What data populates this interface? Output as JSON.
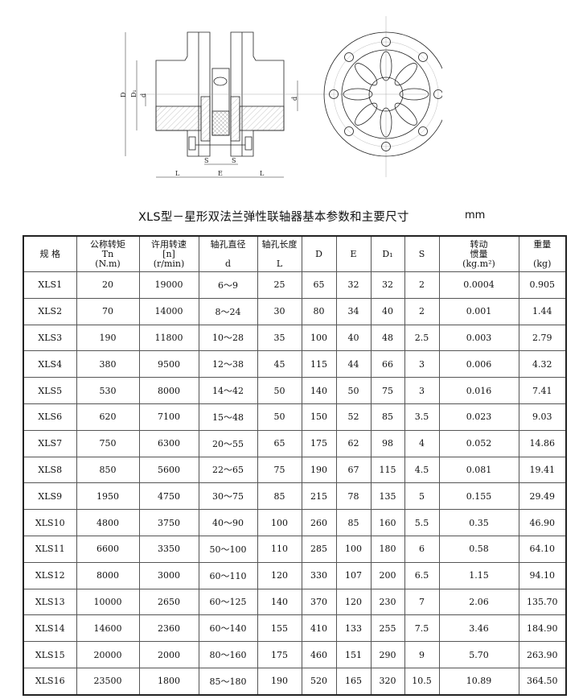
{
  "drawing": {
    "labels": {
      "D": "D",
      "D1": "D₁",
      "d": "d",
      "L": "L",
      "E": "E",
      "S": "S"
    }
  },
  "title": {
    "text": "XLS型－星形双法兰弹性联轴器基本参数和主要尺寸",
    "unit": "mm"
  },
  "table": {
    "headers": [
      {
        "lines": [
          "规 格"
        ]
      },
      {
        "lines": [
          "公称转矩",
          "Tn",
          "(N.m)"
        ]
      },
      {
        "lines": [
          "许用转速",
          "[n]",
          "(r/min)"
        ]
      },
      {
        "lines": [
          "轴孔直径",
          "",
          "d"
        ]
      },
      {
        "lines": [
          "轴孔长度",
          "",
          "L"
        ]
      },
      {
        "lines": [
          "D"
        ]
      },
      {
        "lines": [
          "E"
        ]
      },
      {
        "lines": [
          "D₁"
        ]
      },
      {
        "lines": [
          "S"
        ]
      },
      {
        "lines": [
          "转动",
          "惯量",
          "(kg.m²)"
        ]
      },
      {
        "lines": [
          "重量",
          "",
          "(kg)"
        ]
      }
    ],
    "rows": [
      [
        "XLS1",
        "20",
        "19000",
        "6～9",
        "25",
        "65",
        "32",
        "32",
        "2",
        "0.0004",
        "0.905"
      ],
      [
        "XLS2",
        "70",
        "14000",
        "8～24",
        "30",
        "80",
        "34",
        "40",
        "2",
        "0.001",
        "1.44"
      ],
      [
        "XLS3",
        "190",
        "11800",
        "10～28",
        "35",
        "100",
        "40",
        "48",
        "2.5",
        "0.003",
        "2.79"
      ],
      [
        "XLS4",
        "380",
        "9500",
        "12～38",
        "45",
        "115",
        "44",
        "66",
        "3",
        "0.006",
        "4.32"
      ],
      [
        "XLS5",
        "530",
        "8000",
        "14～42",
        "50",
        "140",
        "50",
        "75",
        "3",
        "0.016",
        "7.41"
      ],
      [
        "XLS6",
        "620",
        "7100",
        "15～48",
        "50",
        "150",
        "52",
        "85",
        "3.5",
        "0.023",
        "9.03"
      ],
      [
        "XLS7",
        "750",
        "6300",
        "20～55",
        "65",
        "175",
        "62",
        "98",
        "4",
        "0.052",
        "14.86"
      ],
      [
        "XLS8",
        "850",
        "5600",
        "22～65",
        "75",
        "190",
        "67",
        "115",
        "4.5",
        "0.081",
        "19.41"
      ],
      [
        "XLS9",
        "1950",
        "4750",
        "30～75",
        "85",
        "215",
        "78",
        "135",
        "5",
        "0.155",
        "29.49"
      ],
      [
        "XLS10",
        "4800",
        "3750",
        "40～90",
        "100",
        "260",
        "85",
        "160",
        "5.5",
        "0.35",
        "46.90"
      ],
      [
        "XLS11",
        "6600",
        "3350",
        "50～100",
        "110",
        "285",
        "100",
        "180",
        "6",
        "0.58",
        "64.10"
      ],
      [
        "XLS12",
        "8000",
        "3000",
        "60～110",
        "120",
        "330",
        "107",
        "200",
        "6.5",
        "1.15",
        "94.10"
      ],
      [
        "XLS13",
        "10000",
        "2650",
        "60～125",
        "140",
        "370",
        "120",
        "230",
        "7",
        "2.06",
        "135.70"
      ],
      [
        "XLS14",
        "14600",
        "2360",
        "60～140",
        "155",
        "410",
        "133",
        "255",
        "7.5",
        "3.46",
        "184.90"
      ],
      [
        "XLS15",
        "20000",
        "2000",
        "80～160",
        "175",
        "460",
        "151",
        "290",
        "9",
        "5.70",
        "263.90"
      ],
      [
        "XLS16",
        "23500",
        "1800",
        "85～180",
        "190",
        "520",
        "165",
        "320",
        "10.5",
        "10.89",
        "364.50"
      ]
    ]
  }
}
